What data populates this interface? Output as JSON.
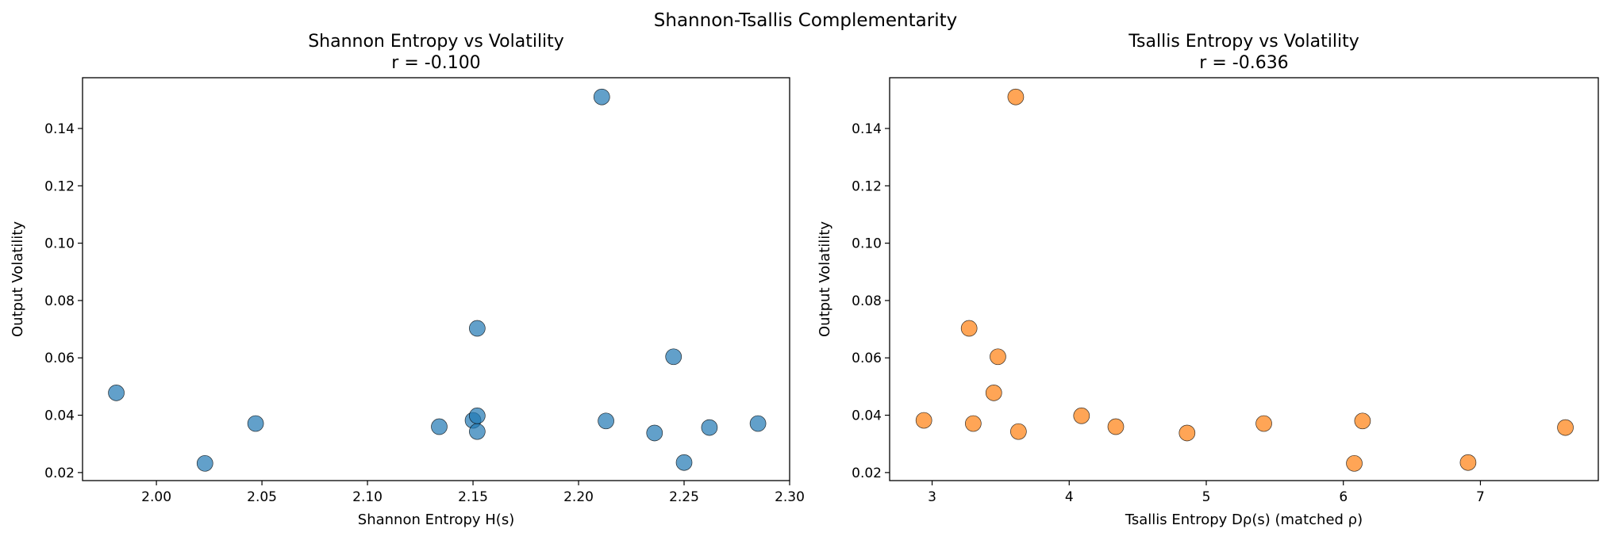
{
  "suptitle": "Shannon-Tsallis Complementarity",
  "chart_data": [
    {
      "type": "scatter",
      "title": "Shannon Entropy vs Volatility",
      "subtitle": "r = -0.100",
      "xlabel": "Shannon Entropy H(s)",
      "ylabel": "Output Volatility",
      "xlim": [
        1.965,
        2.3
      ],
      "ylim": [
        0.0172,
        0.1577
      ],
      "xticks": [
        2.0,
        2.05,
        2.1,
        2.15,
        2.2,
        2.25,
        2.3
      ],
      "xtick_labels": [
        "2.00",
        "2.05",
        "2.10",
        "2.15",
        "2.20",
        "2.25",
        "2.30"
      ],
      "yticks": [
        0.02,
        0.04,
        0.06,
        0.08,
        0.1,
        0.12,
        0.14
      ],
      "ytick_labels": [
        "0.02",
        "0.04",
        "0.06",
        "0.08",
        "0.10",
        "0.12",
        "0.14"
      ],
      "grid": false,
      "color": "#1f77b4",
      "points": [
        {
          "x": 1.981,
          "y": 0.0478
        },
        {
          "x": 2.023,
          "y": 0.0232
        },
        {
          "x": 2.047,
          "y": 0.0371
        },
        {
          "x": 2.134,
          "y": 0.036
        },
        {
          "x": 2.15,
          "y": 0.0382
        },
        {
          "x": 2.152,
          "y": 0.0398
        },
        {
          "x": 2.152,
          "y": 0.0343
        },
        {
          "x": 2.152,
          "y": 0.0703
        },
        {
          "x": 2.211,
          "y": 0.151
        },
        {
          "x": 2.213,
          "y": 0.038
        },
        {
          "x": 2.236,
          "y": 0.0338
        },
        {
          "x": 2.245,
          "y": 0.0604
        },
        {
          "x": 2.25,
          "y": 0.0235
        },
        {
          "x": 2.262,
          "y": 0.0357
        },
        {
          "x": 2.285,
          "y": 0.0371
        }
      ]
    },
    {
      "type": "scatter",
      "title": "Tsallis Entropy vs Volatility",
      "subtitle": "r = -0.636",
      "xlabel": "Tsallis Entropy Dρ(s) (matched ρ)",
      "ylabel": "Output Volatility",
      "xlim": [
        2.69,
        7.86
      ],
      "ylim": [
        0.0172,
        0.1577
      ],
      "xticks": [
        3,
        4,
        5,
        6,
        7
      ],
      "xtick_labels": [
        "3",
        "4",
        "5",
        "6",
        "7"
      ],
      "yticks": [
        0.02,
        0.04,
        0.06,
        0.08,
        0.1,
        0.12,
        0.14
      ],
      "ytick_labels": [
        "0.02",
        "0.04",
        "0.06",
        "0.08",
        "0.10",
        "0.12",
        "0.14"
      ],
      "grid": false,
      "color": "#ff7f0e",
      "points": [
        {
          "x": 2.94,
          "y": 0.0382
        },
        {
          "x": 3.27,
          "y": 0.0703
        },
        {
          "x": 3.3,
          "y": 0.0371
        },
        {
          "x": 3.45,
          "y": 0.0478
        },
        {
          "x": 3.48,
          "y": 0.0604
        },
        {
          "x": 3.61,
          "y": 0.151
        },
        {
          "x": 3.63,
          "y": 0.0343
        },
        {
          "x": 4.09,
          "y": 0.0398
        },
        {
          "x": 4.34,
          "y": 0.036
        },
        {
          "x": 4.86,
          "y": 0.0338
        },
        {
          "x": 5.42,
          "y": 0.0371
        },
        {
          "x": 6.08,
          "y": 0.0232
        },
        {
          "x": 6.14,
          "y": 0.038
        },
        {
          "x": 6.91,
          "y": 0.0235
        },
        {
          "x": 7.62,
          "y": 0.0357
        }
      ]
    }
  ]
}
